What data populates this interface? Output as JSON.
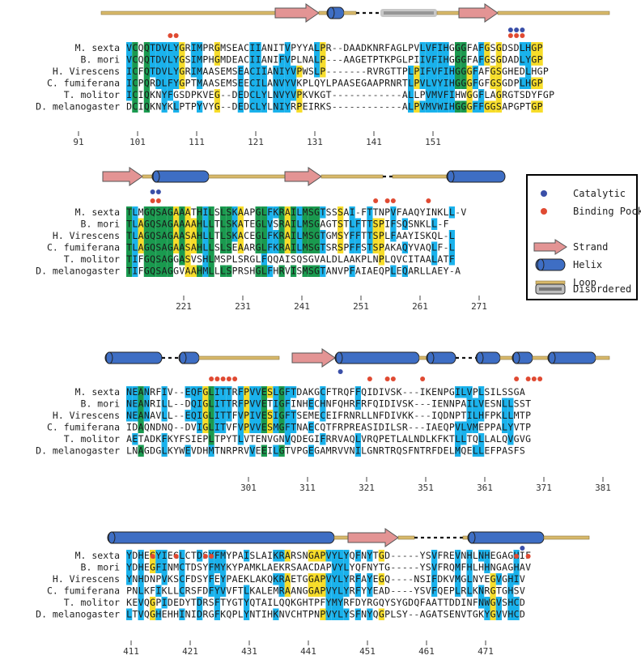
{
  "species": [
    "M. sexta",
    "B. mori",
    "H. Virescens",
    "C. fumiferana",
    "T. molitor",
    "D. melanogaster"
  ],
  "colors": {
    "blue": "#1ab2ec",
    "green": "#1a9a4f",
    "yellow": "#f7dd2a",
    "orange_text": "#d2691e",
    "catalytic": "#3a4fa8",
    "pocket": "#e04a32",
    "strand": "#e39494",
    "helix": "#3e6ec4",
    "loop": "#d8b96a",
    "disordered": "#999999"
  },
  "legend": {
    "catalytic": "Catalytic",
    "binding_pocket": "Binding Pocket",
    "strand": "Strand",
    "helix": "Helix",
    "loop": "Loop",
    "disordered": "Disordered"
  },
  "blocks": [
    {
      "ticks": [
        "91",
        "101",
        "111",
        "121",
        "131",
        "141",
        "151"
      ],
      "seqs": [
        "VCQQTDVLYGRIMPRGMSEACIIANITVPYYALPR--DAADKNRFAGLPVLVFIHGGGFAFGSGDSDLHGP",
        "VCQQTDVLYGSIMPHGMDEACIIANIFVPLNALP---AAGETPTKPGLPIIVFIHGGGFAFGSGDADLYGP",
        "ICFQTDVLYGRIMAASEMSEACIIANIYVPWSLP-------RVRGTTPLPIFVFIHGGGFAFGSGHEDLHGP",
        "ICPQRDLFYGPTMAASEMSEECILANVYVKPLQYLPAASEGAAPRNRTLPVLVYIHGGGFGFGSGDPLHGP",
        "ICIQKNYFGSDPKVEG--DEDCLYLNVYVPKVKGT------------ALLPVMVFIHWGGFLAGRGTSDYFGP",
        "DCIQKNYKLPTPYVYG--DEDCLYLNIYRPEIRKS------------ALPVMVWIHGGGFFGGSAPGPTGP"
      ]
    },
    {
      "ticks": [
        "221",
        "231",
        "241",
        "251",
        "261",
        "271"
      ],
      "seqs": [
        "TLMGQSAGAAATHILSLSKAAPGLFKRAILMSGTSSSAI-FTTNPVFAAQYINKLL-V",
        "TLAGQSAGAAAAHLLTLSKATEGLVSRAILMSGAGTSTLFTTSPIFSQSNKLL-F",
        "TLAGQSAGAASAHLLTLSKACEGLFKRAILMSGTGMSYFFTTSPLFAAYISKQL-L",
        "TLAGQSAGAASAHLLSLSEAARGLFKRAILMSGTSRSPFFSTSPAKAQYVAQLF-L",
        "TIFGQSAGGASVSHLMSPLSRGLFQQAISQSGVALDLAAKPLNPLQVCITAALATF",
        "TIFGQSAGGVAAHMLLLSPRSHGLFHRVISMSGTANVPFAIAEQPLEQARLLAEY-A"
      ]
    },
    {
      "ticks": [
        "301",
        "311",
        "321",
        "351",
        "361",
        "371",
        "381"
      ],
      "seqs": [
        "NEANRFIV--EQFGLITTRFPVVESLGFTDAKGCFTRQFFQIDIVSK---IKENPGILVPLSILSSGA",
        "NEANRILL--DQIGLITTRFPVVETIGFINHECHNFQHRFRFQIDIVSK---IENNPAILVESNLLSST",
        "NEANAVLL--EQIGLITTFVPIVESIGFTSEMECEIFRNRLLNFDIVKK---IQDNPTILHFPKLLMTP",
        "IDAQNDNQ--DVIGLITVFVPVVESMGFTNAECQTFRPREASIDILSR---IAEQPVLVMEPPALYVTP",
        "AETADKFKYFSIEPLTPYTLVTENVGNVQDEGIFRRVAQLVRQPETLALNDLKFKTLLTQLLALQVGVG",
        "LNAGDGLKYWEVDHMTNRPRVVEEILGTVPGEGAMRVVNILGNRTRQSFNTRFDELMQELLEFPASFS"
      ]
    },
    {
      "ticks": [
        "411",
        "421",
        "431",
        "441",
        "451",
        "461",
        "471"
      ],
      "seqs": [
        "YDHEGYIEGLCTDSYFMYPAISLAIKRARSNGAPVYLYQFNYTGD-----YSVFREVNHLNHEGAGHIF",
        "YDHEGFINMCTDSYFMYKYPAMKLAEKRSAACDAPVYLYQFNYTG-----YSVFRQMFHLHHNGAGHAV",
        "YNHDNPVKSCFDSYFEYPAEKLAKQKRAETGGAPVYLYRFAYEGQ----NSIFDKVMGLNYEGVGHIV",
        "PNLKFIKLLCRSFDFYVVFTLKALEMRAANGGAPVYLYRFYYEAD----YSVFQEPLRLKNRGTGHSV",
        "KEVQGPIDEDYTDRSFTYGTYQTAILQQKGHTPFYMYRFDYRGQYSYGDQFAATTDDINFNWGVSHCD",
        "LTVQGHEHHINIDRGFKQPLYNTIHKNVCHTPNPVYLYSFNYQGPLSY--AGATSENVTGKYGVVHCD"
      ]
    }
  ]
}
